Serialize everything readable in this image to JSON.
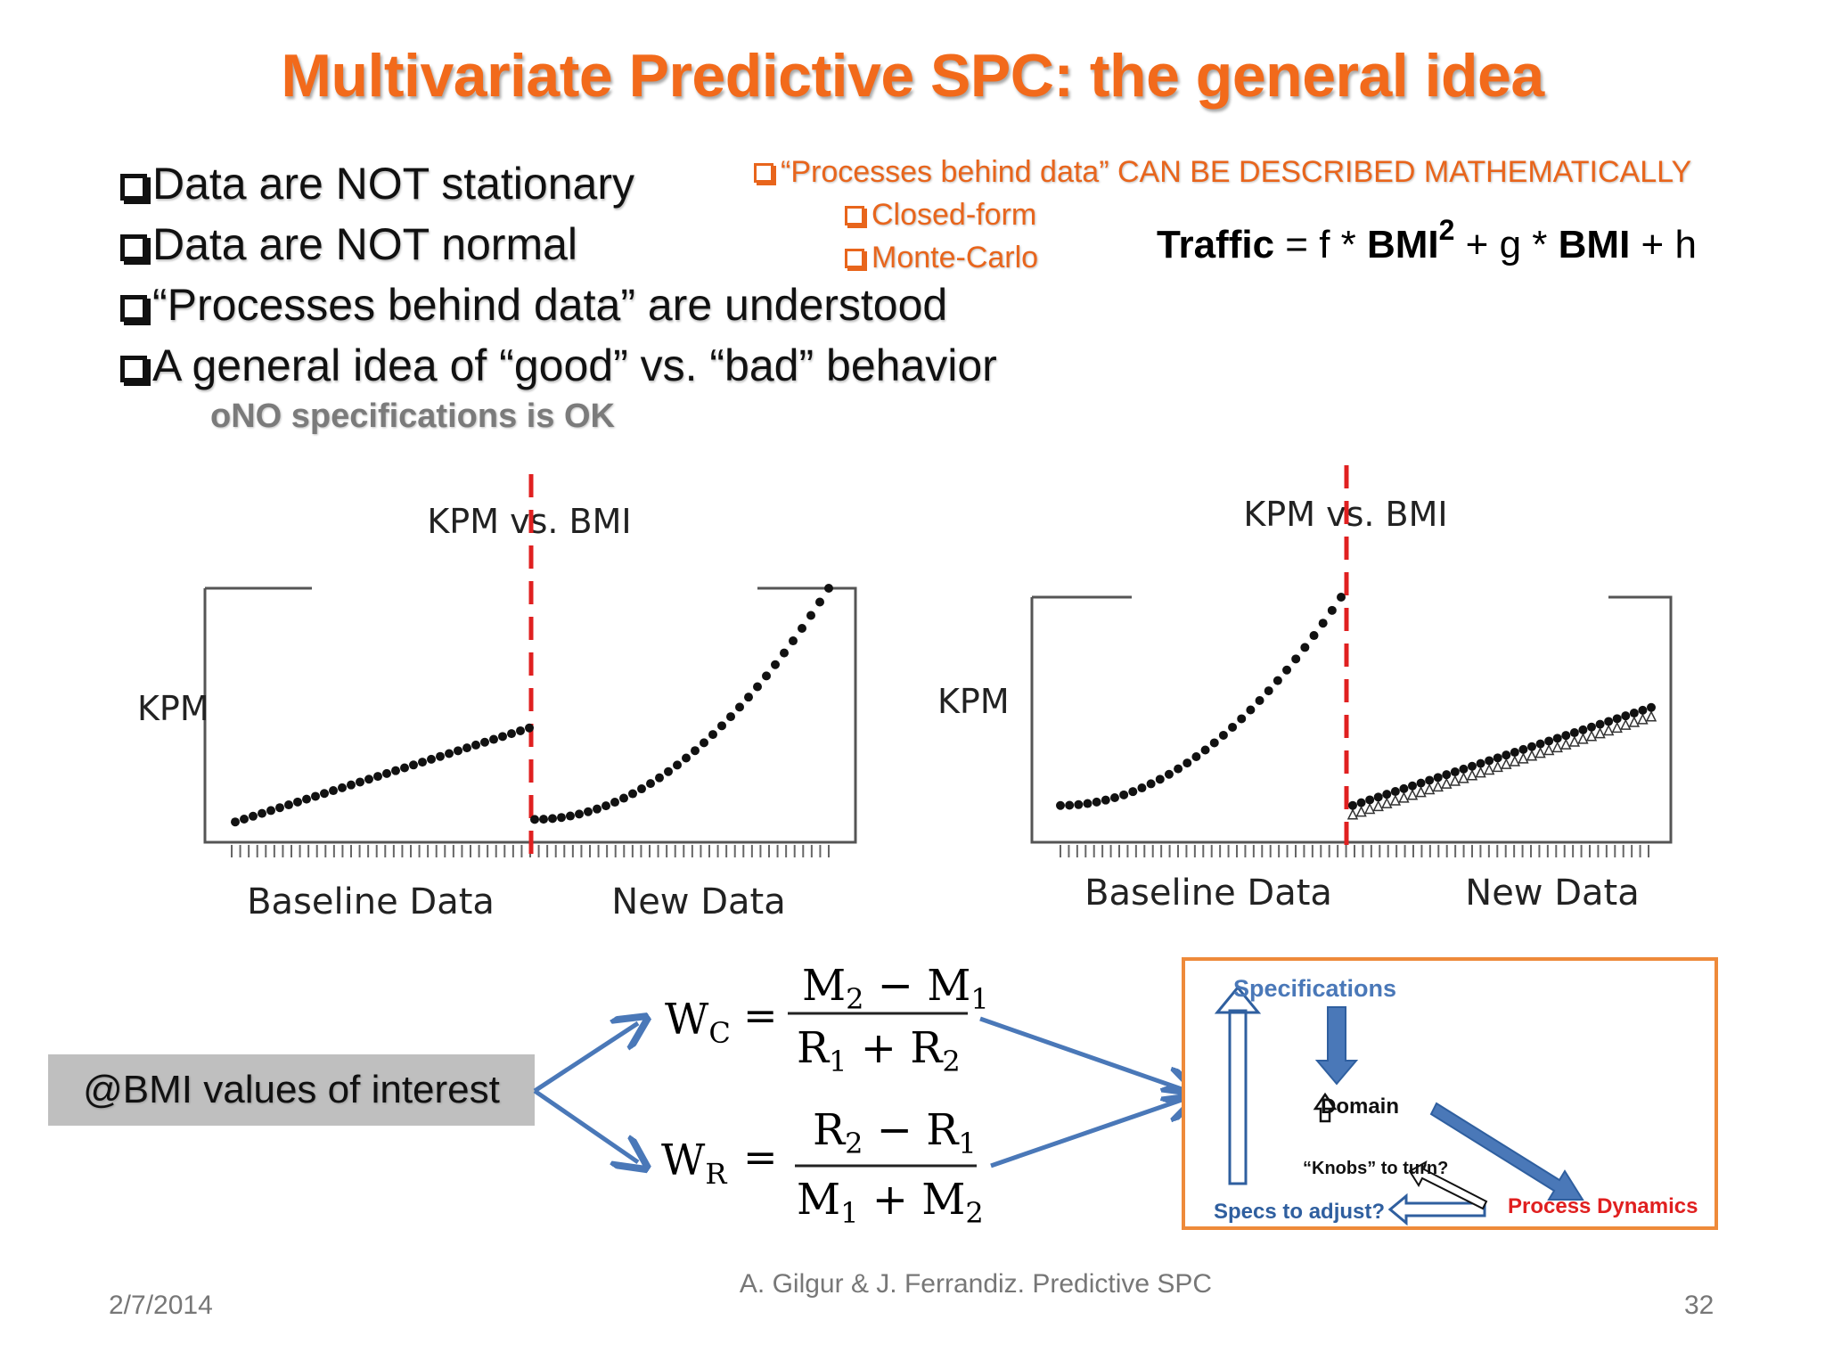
{
  "slide": {
    "title": "Multivariate Predictive SPC: the general idea",
    "bullets": [
      "Data are NOT stationary",
      "Data are NOT normal",
      "“Processes behind data” are understood",
      "A general idea of “good” vs. “bad” behavior"
    ],
    "sub_bullet_marker": "o",
    "sub_bullet": "NO specifications is OK",
    "right_note": {
      "heading": "“Processes behind data” CAN BE DESCRIBED MATHEMATICALLY",
      "items": [
        "Closed-form",
        "Monte-Carlo"
      ]
    },
    "formula": {
      "lhs": "Traffic",
      "eq": " = f * ",
      "term1": "BMI",
      "exp": "2",
      "plus1": " + g * ",
      "term2": "BMI",
      "plus2": " + h"
    },
    "bmi_label": "@BMI values of interest",
    "equations": {
      "wc": {
        "lhs": "W",
        "sub": "C",
        "num": [
          "M",
          "2",
          " − M",
          "1"
        ],
        "den": [
          "R",
          "1",
          " + R",
          "2"
        ]
      },
      "wr": {
        "lhs": "W",
        "sub": "R",
        "num": [
          "R",
          "2",
          " − R",
          "1"
        ],
        "den": [
          "M",
          "1",
          " + M",
          "2"
        ]
      }
    },
    "diagram": {
      "specifications": "Specifications",
      "domain": "Domain",
      "knobs": "“Knobs” to turn?",
      "specs_adjust": "Specs to adjust?",
      "process_dynamics": "Process Dynamics"
    },
    "footer": {
      "date": "2/7/2014",
      "center": "A. Gilgur & J. Ferrandiz.  Predictive SPC",
      "page": "32"
    }
  },
  "chart_data": [
    {
      "type": "scatter",
      "title": "KPM vs. BMI",
      "ylabel": "KPM",
      "xlabel_left": "Baseline Data",
      "xlabel_right": "New Data",
      "divider": "red dashed vertical line between baseline and new data",
      "series": [
        {
          "segment": "Baseline Data",
          "shape": "linear, shallow rise",
          "y_start": 0.08,
          "y_end": 0.45
        },
        {
          "segment": "New Data",
          "shape": "quadratic, steep rise",
          "y_start": 0.09,
          "y_end": 1.0
        }
      ]
    },
    {
      "type": "scatter",
      "title": "KPM vs. BMI",
      "ylabel": "KPM",
      "xlabel_left": "Baseline Data",
      "xlabel_right": "New Data",
      "divider": "red dashed vertical line between baseline and new data",
      "series": [
        {
          "segment": "Baseline Data",
          "shape": "quadratic, steep rise",
          "y_start": 0.15,
          "y_end": 1.0
        },
        {
          "segment": "New Data",
          "shape": "linear, shallow rise (overlapping markers)",
          "y_start": 0.15,
          "y_end": 0.55
        }
      ]
    }
  ]
}
